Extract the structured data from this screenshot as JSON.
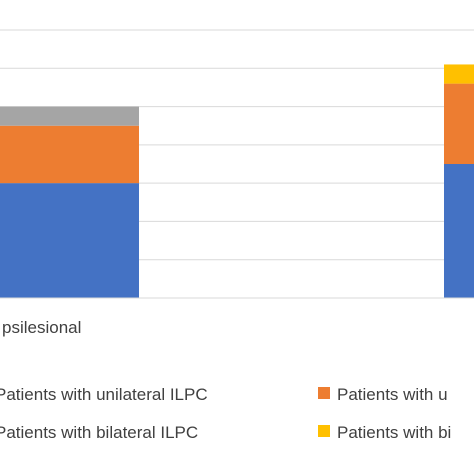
{
  "chart_data": {
    "type": "bar",
    "stacked": true,
    "title": "",
    "xlabel": "",
    "ylabel": "",
    "ylim": [
      0,
      7
    ],
    "grid": true,
    "legend_position": "bottom",
    "categories": [
      "psilesional",
      ""
    ],
    "series": [
      {
        "name": "Patients with unilateral ILPC",
        "color": "#4472C4",
        "values": [
          3,
          3.5
        ]
      },
      {
        "name": "Patients with u",
        "color": "#ED7D31",
        "values": [
          1.5,
          2.1
        ]
      },
      {
        "name": "Patients with bilateral ILPC",
        "color": "#A5A5A5",
        "values": [
          0.5,
          0
        ]
      },
      {
        "name": "Patients with bi",
        "color": "#FFC000",
        "values": [
          0,
          0.5
        ]
      }
    ]
  }
}
